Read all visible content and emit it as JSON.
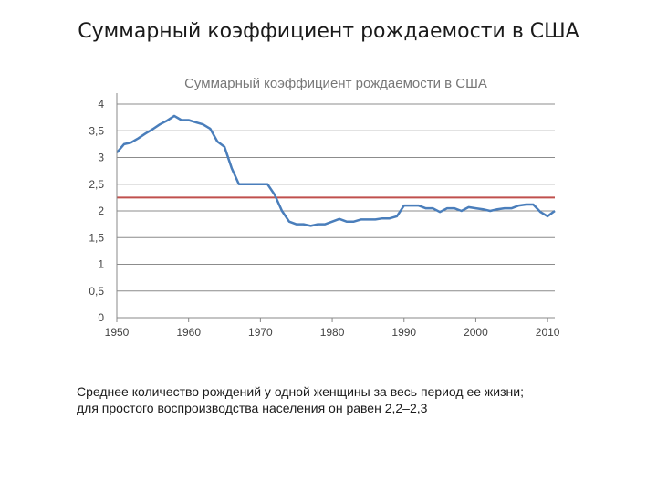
{
  "slide": {
    "title": "Суммарный коэффициент рождаемости в США",
    "caption_line1": "Среднее количество рождений у одной женщины за весь период ее жизни;",
    "caption_line2": "для простого воспроизводства населения он равен 2,2–2,3"
  },
  "chart_data": {
    "type": "line",
    "title": "Суммарный коэффициент рождаемости в США",
    "xlabel": "",
    "ylabel": "",
    "xlim": [
      1950,
      2011
    ],
    "ylim": [
      0,
      4
    ],
    "x_ticks": [
      1950,
      1960,
      1970,
      1980,
      1990,
      2000,
      2010
    ],
    "y_ticks": [
      0,
      0.5,
      1,
      1.5,
      2,
      2.5,
      3,
      3.5,
      4
    ],
    "y_tick_labels": [
      "0",
      "0,5",
      "1",
      "1,5",
      "2",
      "2,5",
      "3",
      "3,5",
      "4"
    ],
    "grid": "horizontal",
    "series": [
      {
        "color": "#4a7ebb",
        "x": [
          1950,
          1951,
          1952,
          1953,
          1954,
          1955,
          1956,
          1957,
          1958,
          1959,
          1960,
          1961,
          1962,
          1963,
          1964,
          1965,
          1966,
          1967,
          1968,
          1969,
          1970,
          1971,
          1972,
          1973,
          1974,
          1975,
          1976,
          1977,
          1978,
          1979,
          1980,
          1981,
          1982,
          1983,
          1984,
          1985,
          1986,
          1987,
          1988,
          1989,
          1990,
          1991,
          1992,
          1993,
          1994,
          1995,
          1996,
          1997,
          1998,
          1999,
          2000,
          2001,
          2002,
          2003,
          2004,
          2005,
          2006,
          2007,
          2008,
          2009,
          2010,
          2011
        ],
        "values": [
          3.09,
          3.25,
          3.28,
          3.36,
          3.45,
          3.53,
          3.62,
          3.69,
          3.78,
          3.7,
          3.7,
          3.66,
          3.62,
          3.54,
          3.3,
          3.2,
          2.8,
          2.5,
          2.5,
          2.5,
          2.5,
          2.5,
          2.3,
          2.0,
          1.8,
          1.75,
          1.75,
          1.72,
          1.75,
          1.75,
          1.8,
          1.85,
          1.8,
          1.8,
          1.84,
          1.84,
          1.84,
          1.86,
          1.86,
          1.9,
          2.1,
          2.1,
          2.1,
          2.05,
          2.05,
          1.98,
          2.05,
          2.05,
          2.0,
          2.07,
          2.05,
          2.03,
          2.0,
          2.03,
          2.05,
          2.05,
          2.1,
          2.12,
          2.12,
          1.98,
          1.9,
          2.0
        ]
      },
      {
        "color": "#c0504d",
        "x": [
          1950,
          2011
        ],
        "values": [
          2.25,
          2.25
        ]
      }
    ]
  }
}
